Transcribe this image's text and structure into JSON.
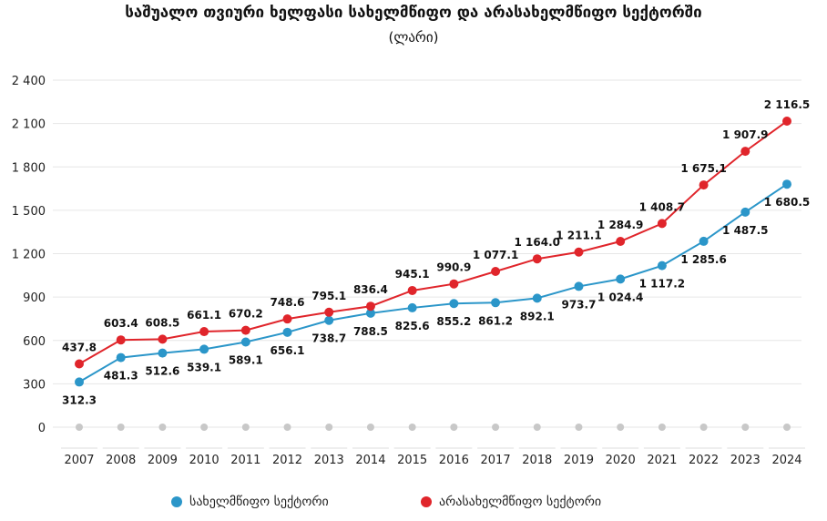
{
  "chart_data": {
    "type": "line",
    "title": "საშუალო თვიური ხელფასი სახელმწიფო და არასახელმწიფო სექტორში",
    "subtitle": "(ლარი)",
    "xlabel": "",
    "ylabel": "",
    "ylim": [
      0,
      2400
    ],
    "yticks": [
      0,
      300,
      600,
      900,
      1200,
      1500,
      1800,
      2100,
      2400
    ],
    "ytick_labels": [
      "0",
      "300",
      "600",
      "900",
      "1 200",
      "1 500",
      "1 800",
      "2 100",
      "2 400"
    ],
    "categories": [
      "2007",
      "2008",
      "2009",
      "2010",
      "2011",
      "2012",
      "2013",
      "2014",
      "2015",
      "2016",
      "2017",
      "2018",
      "2019",
      "2020",
      "2021",
      "2022",
      "2023",
      "2024"
    ],
    "grid": true,
    "legend_position": "bottom",
    "series": [
      {
        "name": "სახელმწიფო სექტორი",
        "color": "#2b96c9",
        "values": [
          312.3,
          481.3,
          512.6,
          539.1,
          589.1,
          656.1,
          738.7,
          788.5,
          825.6,
          855.2,
          861.2,
          892.1,
          973.7,
          1024.4,
          1117.2,
          1285.6,
          1487.5,
          1680.5
        ],
        "labels": [
          "312.3",
          "481.3",
          "512.6",
          "539.1",
          "589.1",
          "656.1",
          "738.7",
          "788.5",
          "825.6",
          "855.2",
          "861.2",
          "892.1",
          "973.7",
          "1 024.4",
          "1 117.2",
          "1 285.6",
          "1 487.5",
          "1 680.5"
        ]
      },
      {
        "name": "არასახელმწიფო სექტორი",
        "color": "#e0252b",
        "values": [
          437.8,
          603.4,
          608.5,
          661.1,
          670.2,
          748.6,
          795.1,
          836.4,
          945.1,
          990.9,
          1077.1,
          1164.0,
          1211.1,
          1284.9,
          1408.7,
          1675.1,
          1907.9,
          2116.5
        ],
        "labels": [
          "437.8",
          "603.4",
          "608.5",
          "661.1",
          "670.2",
          "748.6",
          "795.1",
          "836.4",
          "945.1",
          "990.9",
          "1 077.1",
          "1 164.0",
          "1 211.1",
          "1 284.9",
          "1 408.7",
          "1 675.1",
          "1 907.9",
          "2 116.5"
        ]
      }
    ]
  }
}
